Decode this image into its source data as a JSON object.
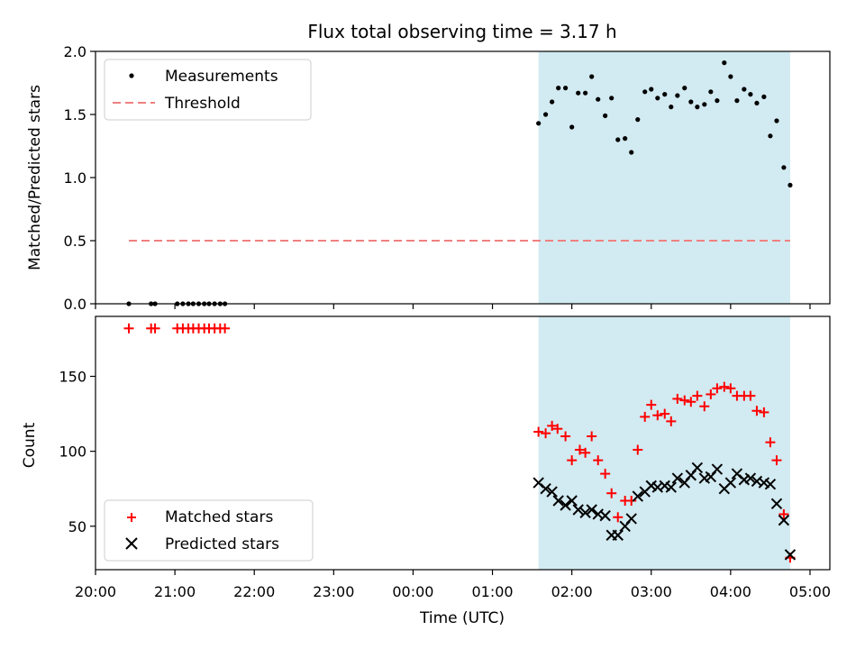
{
  "title": "Flux total observing time = 3.17 h",
  "colors": {
    "measurements": "#000000",
    "threshold": "#f08080",
    "matched": "#ff0000",
    "predicted": "#000000",
    "shade": "#add8e6"
  },
  "chart_data": [
    {
      "type": "scatter",
      "ylabel": "Matched/Predicted stars",
      "ylim": [
        0,
        2.0
      ],
      "yticks": [
        "0.0",
        "0.5",
        "1.0",
        "1.5",
        "2.0"
      ],
      "ytick_values": [
        0,
        0.5,
        1.0,
        1.5,
        2.0
      ],
      "xlim_hours": [
        20.0,
        29.25
      ],
      "shaded_region_hours": [
        25.58,
        28.75
      ],
      "legend": {
        "position": "top-left",
        "entries": [
          "Measurements",
          "Threshold"
        ]
      },
      "threshold": {
        "name": "Threshold",
        "value": 0.5,
        "x_range_hours": [
          20.42,
          28.75
        ]
      },
      "series": [
        {
          "name": "Measurements",
          "marker": "dot",
          "x_hours": [
            20.42,
            20.7,
            20.75,
            21.03,
            21.1,
            21.17,
            21.23,
            21.3,
            21.37,
            21.43,
            21.5,
            21.57,
            21.63,
            25.58,
            25.67,
            25.75,
            25.83,
            25.92,
            26.0,
            26.08,
            26.17,
            26.25,
            26.33,
            26.42,
            26.5,
            26.58,
            26.67,
            26.75,
            26.83,
            26.92,
            27.0,
            27.08,
            27.17,
            27.25,
            27.33,
            27.42,
            27.5,
            27.58,
            27.67,
            27.75,
            27.83,
            27.92,
            28.0,
            28.08,
            28.17,
            28.25,
            28.33,
            28.42,
            28.5,
            28.58,
            28.67,
            28.75
          ],
          "y": [
            0,
            0,
            0,
            0,
            0,
            0,
            0,
            0,
            0,
            0,
            0,
            0,
            0,
            1.43,
            1.5,
            1.6,
            1.71,
            1.71,
            1.4,
            1.67,
            1.67,
            1.8,
            1.62,
            1.49,
            1.63,
            1.3,
            1.31,
            1.2,
            1.46,
            1.68,
            1.7,
            1.63,
            1.66,
            1.56,
            1.65,
            1.71,
            1.6,
            1.56,
            1.58,
            1.68,
            1.61,
            1.91,
            1.8,
            1.61,
            1.7,
            1.66,
            1.59,
            1.64,
            1.33,
            1.45,
            1.08,
            0.94
          ]
        }
      ]
    },
    {
      "type": "scatter",
      "ylabel": "Count",
      "xlabel": "Time (UTC)",
      "ylim": [
        21,
        190
      ],
      "yticks": [
        "50",
        "100",
        "150"
      ],
      "ytick_values": [
        50,
        100,
        150
      ],
      "xlim_hours": [
        20.0,
        29.25
      ],
      "xticks": [
        "20:00",
        "21:00",
        "22:00",
        "23:00",
        "00:00",
        "01:00",
        "02:00",
        "03:00",
        "04:00",
        "05:00"
      ],
      "xtick_hours": [
        20,
        21,
        22,
        23,
        24,
        25,
        26,
        27,
        28,
        29
      ],
      "shaded_region_hours": [
        25.58,
        28.75
      ],
      "legend": {
        "position": "bottom-left",
        "entries": [
          "Matched stars",
          "Predicted stars"
        ]
      },
      "series": [
        {
          "name": "Matched stars",
          "marker": "plus",
          "x_hours": [
            20.42,
            20.7,
            20.75,
            21.03,
            21.1,
            21.17,
            21.23,
            21.3,
            21.37,
            21.43,
            21.5,
            21.57,
            21.63,
            25.58,
            25.67,
            25.75,
            25.82,
            25.92,
            26.0,
            26.1,
            26.17,
            26.25,
            26.33,
            26.42,
            26.5,
            26.58,
            26.67,
            26.75,
            26.83,
            26.92,
            27.0,
            27.08,
            27.17,
            27.25,
            27.33,
            27.42,
            27.5,
            27.58,
            27.67,
            27.75,
            27.83,
            27.92,
            28.0,
            28.08,
            28.17,
            28.25,
            28.33,
            28.42,
            28.5,
            28.58,
            28.67,
            28.75
          ],
          "y": [
            182,
            182,
            182,
            182,
            182,
            182,
            182,
            182,
            182,
            182,
            182,
            182,
            182,
            113,
            112,
            117,
            115,
            110,
            94,
            101,
            99,
            110,
            94,
            85,
            72,
            56,
            67,
            67,
            101,
            123,
            131,
            124,
            125,
            120,
            135,
            134,
            133,
            137,
            130,
            138,
            142,
            143,
            142,
            137,
            137,
            137,
            127,
            126,
            106,
            94,
            58,
            29
          ]
        },
        {
          "name": "Predicted stars",
          "marker": "x",
          "x_hours": [
            25.58,
            25.67,
            25.75,
            25.83,
            25.92,
            26.0,
            26.08,
            26.17,
            26.25,
            26.33,
            26.42,
            26.5,
            26.58,
            26.67,
            26.75,
            26.83,
            26.92,
            27.0,
            27.08,
            27.17,
            27.25,
            27.33,
            27.42,
            27.5,
            27.58,
            27.67,
            27.75,
            27.83,
            27.92,
            28.0,
            28.08,
            28.17,
            28.25,
            28.33,
            28.42,
            28.5,
            28.58,
            28.67,
            28.75
          ],
          "y": [
            79,
            75,
            73,
            67,
            64,
            67,
            61,
            59,
            61,
            58,
            57,
            44,
            44,
            50,
            55,
            70,
            73,
            77,
            76,
            77,
            76,
            82,
            79,
            84,
            89,
            82,
            83,
            88,
            75,
            79,
            85,
            81,
            82,
            80,
            79,
            78,
            65,
            54,
            31
          ]
        }
      ]
    }
  ]
}
